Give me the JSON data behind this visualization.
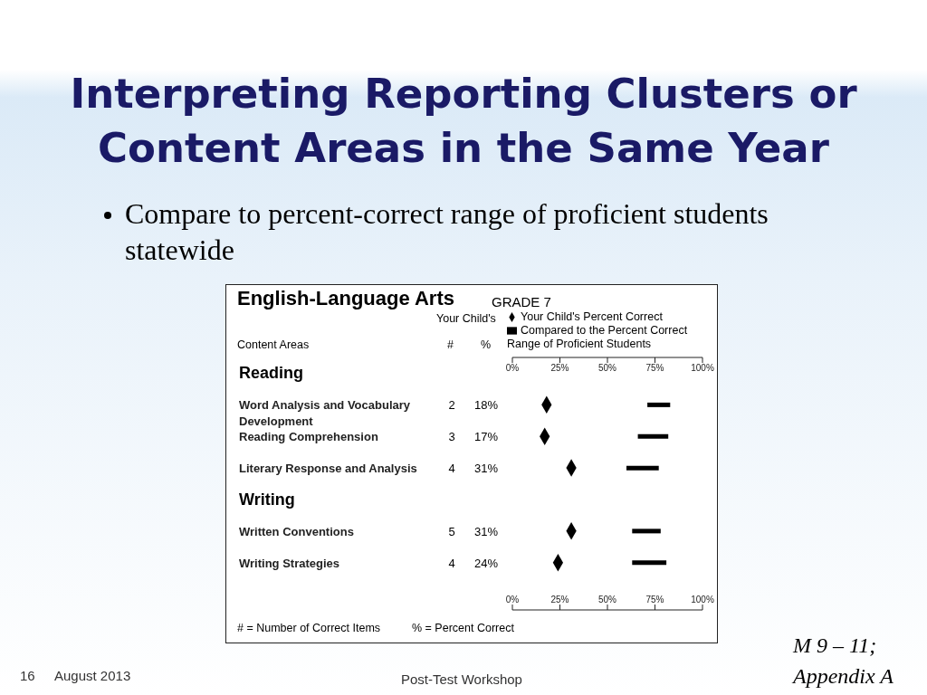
{
  "chart_data": {
    "type": "bar",
    "orientation": "horizontal",
    "title": "Interpreting Reporting Clusters or Content Areas in the Same Year",
    "subtitle": "Compare to percent-correct range of proficient students statewide",
    "ylabel": "Content Areas",
    "legend": "top",
    "marker": "diamond",
    "categories": [
      "Reading",
      "Word Analysis and Vocabulary Development",
      "Reading Comprehension",
      "Literary Response and Analysis",
      "Writing",
      "Written Conventions",
      "Writing Strategies",
      null
    ],
    "series": [
      {
        "name": "Your Child's Percent Correct",
        "type": "scatter",
        "color": "#000000",
        "values": [
          null,
          18,
          17,
          31,
          null,
          31,
          24,
          null
        ],
        "value_labels": [
          null,
          "18%",
          "17%",
          "31%",
          null,
          "31%",
          "24%",
          null
        ]
      },
      {
        "name": "Compared to the Percent Correct Range of Proficient Students",
        "color": "#000000",
        "base": [
          null,
          71,
          66,
          60,
          null,
          63,
          63,
          null
        ],
        "values": [
          null,
          12,
          16,
          17,
          null,
          15,
          18,
          null
        ]
      }
    ],
    "xlim": [
      0,
      100
    ],
    "xticks": [
      {
        "value": 0,
        "label": "0%"
      },
      {
        "value": 25,
        "label": "25%"
      },
      {
        "value": 50,
        "label": "50%"
      },
      {
        "value": 75,
        "label": "75%"
      },
      {
        "value": 100,
        "label": "100%"
      }
    ],
    "x2lim": [
      0,
      100
    ],
    "x2ticks": [
      {
        "value": 0,
        "label": "0%"
      },
      {
        "value": 25,
        "label": "25%"
      },
      {
        "value": 50,
        "label": "50%"
      },
      {
        "value": 75,
        "label": "75%"
      },
      {
        "value": 100,
        "label": "100%"
      }
    ],
    "annotations": [
      "English-Language Arts",
      "GRADE 7",
      "Your Child's",
      "#",
      "%",
      "# = Number of Correct Items",
      "% = Percent Correct",
      "16",
      "August 2013",
      "Post-Test Workshop",
      "M 9 – 11;",
      "Appendix A",
      "2",
      "3",
      "4",
      "5",
      "4"
    ]
  }
}
